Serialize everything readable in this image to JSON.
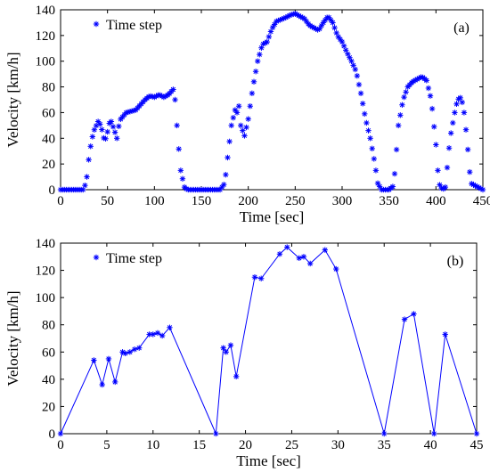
{
  "chart_data": [
    {
      "type": "scatter",
      "panel_label": "(a)",
      "xlabel": "Time [sec]",
      "ylabel": "Velocity [km/h]",
      "xlim": [
        0,
        450
      ],
      "ylim": [
        0,
        140
      ],
      "xticks": [
        0,
        50,
        100,
        150,
        200,
        250,
        300,
        350,
        400,
        450
      ],
      "yticks": [
        0,
        20,
        40,
        60,
        80,
        100,
        120,
        140
      ],
      "legend": {
        "label": "Time step",
        "position": "top-left"
      },
      "color": "#0000ff",
      "marker": "asterisk",
      "line": false,
      "keypoints": {
        "x": [
          0,
          25,
          28,
          31,
          35,
          40,
          43,
          47,
          50,
          53,
          57,
          60,
          63,
          70,
          80,
          90,
          95,
          100,
          105,
          110,
          115,
          120,
          122,
          125,
          128,
          132,
          135,
          150,
          170,
          175,
          178,
          182,
          186,
          188,
          190,
          192,
          196,
          200,
          205,
          210,
          215,
          220,
          225,
          230,
          240,
          245,
          250,
          255,
          260,
          265,
          270,
          275,
          280,
          285,
          290,
          295,
          300,
          305,
          310,
          315,
          320,
          325,
          330,
          335,
          338,
          342,
          345,
          350,
          355,
          360,
          365,
          370,
          375,
          380,
          385,
          390,
          395,
          400,
          403,
          407,
          410,
          415,
          420,
          423,
          427,
          430,
          433,
          437,
          450
        ],
        "y": [
          0,
          0,
          10,
          30,
          45,
          53,
          50,
          37,
          45,
          55,
          47,
          40,
          54,
          60,
          62,
          70,
          73,
          72,
          74,
          72,
          74,
          78,
          70,
          40,
          15,
          2,
          0,
          0,
          0,
          5,
          25,
          50,
          62,
          60,
          65,
          50,
          42,
          55,
          80,
          100,
          113,
          115,
          125,
          131,
          134,
          136,
          137,
          135,
          133,
          128,
          126,
          124,
          130,
          135,
          130,
          120,
          115,
          107,
          100,
          92,
          75,
          55,
          40,
          20,
          5,
          0,
          0,
          0,
          3,
          50,
          70,
          80,
          84,
          86,
          88,
          85,
          70,
          35,
          5,
          0,
          2,
          40,
          60,
          70,
          72,
          60,
          40,
          5,
          0
        ]
      }
    },
    {
      "type": "line",
      "panel_label": "(b)",
      "xlabel": "Time [sec]",
      "ylabel": "Velocity [km/h]",
      "xlim": [
        0,
        45
      ],
      "ylim": [
        0,
        140
      ],
      "xticks": [
        0,
        5,
        10,
        15,
        20,
        25,
        30,
        35,
        40,
        45
      ],
      "yticks": [
        0,
        20,
        40,
        60,
        80,
        100,
        120,
        140
      ],
      "legend": {
        "label": "Time step",
        "position": "top-left"
      },
      "color": "#0000ff",
      "marker": "asterisk",
      "line": true,
      "x": [
        0,
        3.6,
        4.5,
        5.2,
        5.9,
        6.7,
        7.0,
        7.5,
        8.0,
        8.5,
        9.6,
        10.0,
        10.5,
        11.0,
        11.8,
        16.8,
        17.6,
        17.9,
        18.4,
        19.0,
        21.0,
        21.7,
        23.7,
        24.5,
        25.8,
        26.3,
        27.0,
        28.6,
        29.8,
        35.0,
        37.2,
        38.2,
        40.4,
        41.6,
        45.0
      ],
      "y": [
        0,
        54,
        36,
        55,
        38,
        60,
        59,
        60,
        62,
        63,
        73,
        73,
        74,
        72,
        78,
        0,
        63,
        60,
        65,
        42,
        115,
        114,
        132,
        137,
        129,
        130,
        125,
        135,
        121,
        0,
        84,
        88,
        0,
        73,
        0
      ]
    }
  ]
}
